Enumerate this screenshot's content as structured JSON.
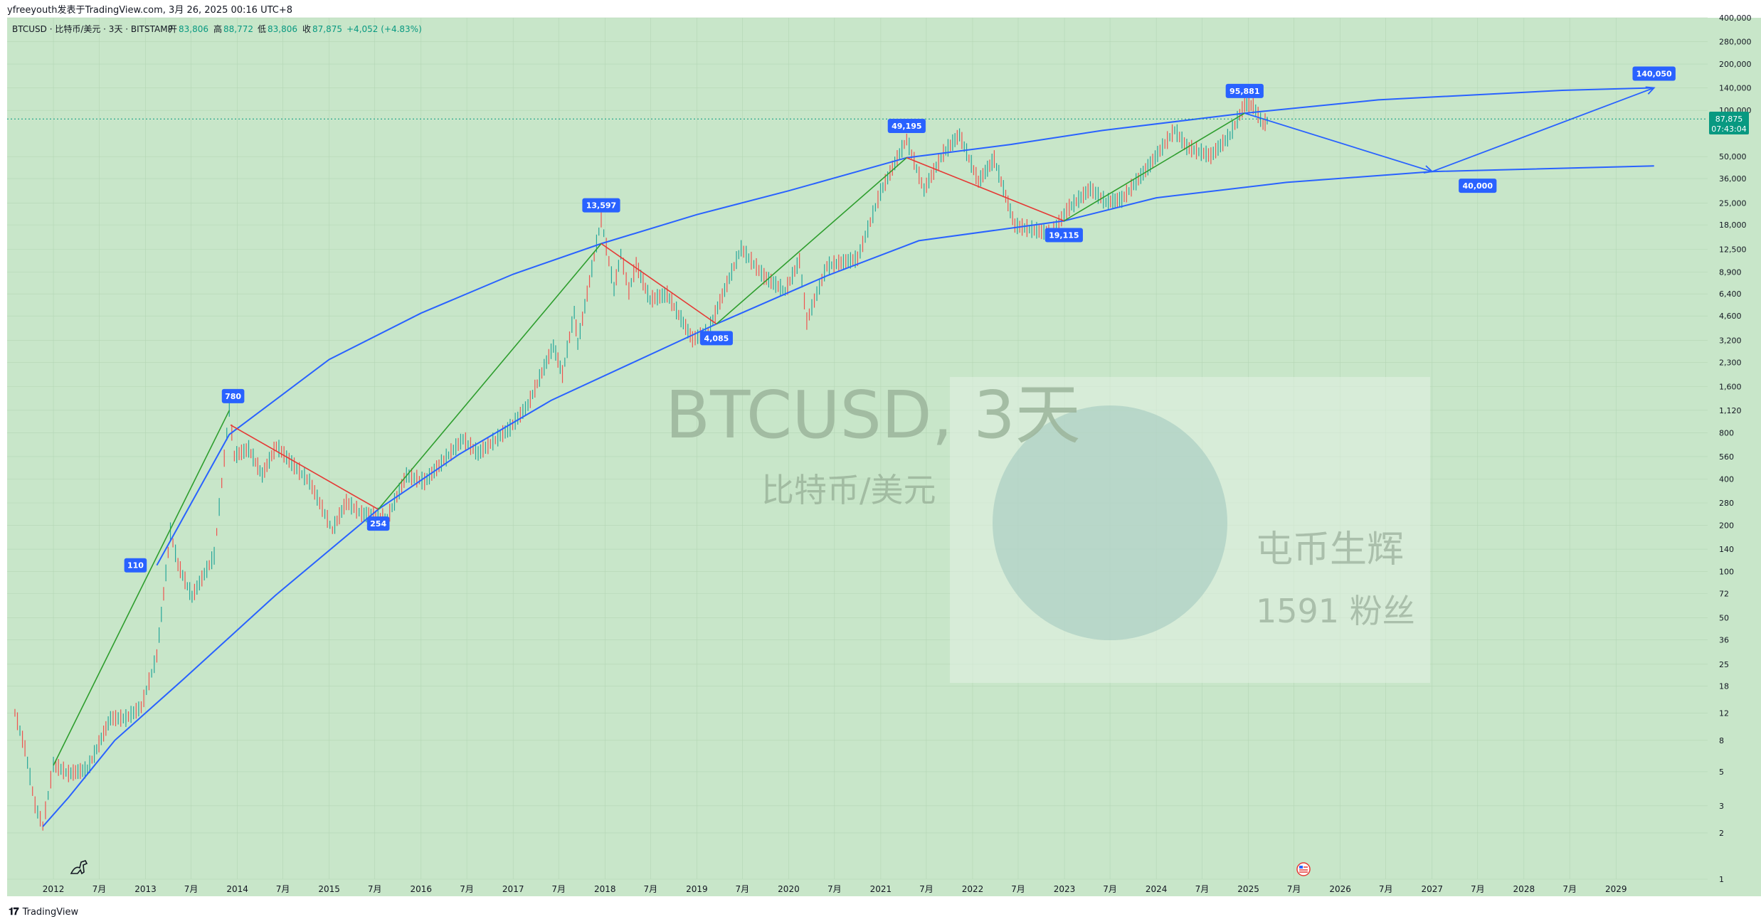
{
  "header": {
    "publish_line": "yfreeyouth发表于TradingView.com, 3月 26, 2025 00:16 UTC+8",
    "symbol_line": "BTCUSD · 比特币/美元 · 3天 · BITSTAMP",
    "ohlc": {
      "open_label": "开",
      "open": "83,806",
      "high_label": "高",
      "high": "88,772",
      "low_label": "低",
      "low": "83,806",
      "close_label": "收",
      "close": "87,875",
      "change": "+4,052 (+4.83%)"
    }
  },
  "watermark": {
    "symbol": "BTCUSD, 3天",
    "description": "比特币/美元",
    "channel_name": "屯币生辉",
    "followers": "1591 粉丝"
  },
  "price_badge": {
    "price": "87,875",
    "countdown": "07:43:04"
  },
  "footer": {
    "brand": "TradingView"
  },
  "colors": {
    "plot_bg": "#c8e6c9",
    "up_candle": "#26a69a",
    "down_candle": "#ef5350",
    "channel_line": "#2962ff",
    "uptrend_line": "#2e9e2e",
    "downtrend_line": "#e53935",
    "callout_bg": "#2962ff",
    "price_badge_bg": "#089981"
  },
  "icons": [
    "dinosaur-icon",
    "us-flag-icon",
    "tradingview-logo-icon"
  ],
  "chart_data": {
    "type": "line",
    "scale": "log",
    "ylim": [
      1,
      400000
    ],
    "xlim": [
      "2011-07-01",
      "2029-12-31"
    ],
    "y_ticks": [
      "400,000",
      "280,000",
      "200,000",
      "140,000",
      "100,000",
      "50,000",
      "36,000",
      "25,000",
      "18,000",
      "12,500",
      "8,900",
      "6,400",
      "4,600",
      "3,200",
      "2,300",
      "1,600",
      "1,120",
      "800",
      "560",
      "400",
      "280",
      "200",
      "140",
      "100",
      "72",
      "50",
      "36",
      "25",
      "18",
      "12",
      "8",
      "5",
      "3",
      "2",
      "1"
    ],
    "x_ticks": [
      {
        "date": "2012-01-01",
        "label": "2012"
      },
      {
        "date": "2012-07-01",
        "label": "7月"
      },
      {
        "date": "2013-01-01",
        "label": "2013"
      },
      {
        "date": "2013-07-01",
        "label": "7月"
      },
      {
        "date": "2014-01-01",
        "label": "2014"
      },
      {
        "date": "2014-07-01",
        "label": "7月"
      },
      {
        "date": "2015-01-01",
        "label": "2015"
      },
      {
        "date": "2015-07-01",
        "label": "7月"
      },
      {
        "date": "2016-01-01",
        "label": "2016"
      },
      {
        "date": "2016-07-01",
        "label": "7月"
      },
      {
        "date": "2017-01-01",
        "label": "2017"
      },
      {
        "date": "2017-07-01",
        "label": "7月"
      },
      {
        "date": "2018-01-01",
        "label": "2018"
      },
      {
        "date": "2018-07-01",
        "label": "7月"
      },
      {
        "date": "2019-01-01",
        "label": "2019"
      },
      {
        "date": "2019-07-01",
        "label": "7月"
      },
      {
        "date": "2020-01-01",
        "label": "2020"
      },
      {
        "date": "2020-07-01",
        "label": "7月"
      },
      {
        "date": "2021-01-01",
        "label": "2021"
      },
      {
        "date": "2021-07-01",
        "label": "7月"
      },
      {
        "date": "2022-01-01",
        "label": "2022"
      },
      {
        "date": "2022-07-01",
        "label": "7月"
      },
      {
        "date": "2023-01-01",
        "label": "2023"
      },
      {
        "date": "2023-07-01",
        "label": "7月"
      },
      {
        "date": "2024-01-01",
        "label": "2024"
      },
      {
        "date": "2024-07-01",
        "label": "7月"
      },
      {
        "date": "2025-01-01",
        "label": "2025"
      },
      {
        "date": "2025-07-01",
        "label": "7月"
      },
      {
        "date": "2026-01-01",
        "label": "2026"
      },
      {
        "date": "2026-07-01",
        "label": "7月"
      },
      {
        "date": "2027-01-01",
        "label": "2027"
      },
      {
        "date": "2027-07-01",
        "label": "7月"
      },
      {
        "date": "2028-01-01",
        "label": "2028"
      },
      {
        "date": "2028-07-01",
        "label": "7月"
      },
      {
        "date": "2029-01-01",
        "label": "2029"
      }
    ],
    "price_path": [
      [
        "2011-08-01",
        12
      ],
      [
        "2011-09-10",
        7
      ],
      [
        "2011-10-20",
        3
      ],
      [
        "2011-11-20",
        2.2
      ],
      [
        "2012-01-01",
        5.5
      ],
      [
        "2012-03-01",
        4.8
      ],
      [
        "2012-05-15",
        5.1
      ],
      [
        "2012-08-15",
        11
      ],
      [
        "2012-10-15",
        11
      ],
      [
        "2012-12-15",
        13
      ],
      [
        "2013-02-15",
        28
      ],
      [
        "2013-04-10",
        180
      ],
      [
        "2013-05-10",
        110
      ],
      [
        "2013-07-05",
        68
      ],
      [
        "2013-10-01",
        125
      ],
      [
        "2013-11-30",
        1120
      ],
      [
        "2013-12-20",
        560
      ],
      [
        "2014-02-15",
        620
      ],
      [
        "2014-04-10",
        420
      ],
      [
        "2014-06-05",
        650
      ],
      [
        "2014-08-15",
        480
      ],
      [
        "2014-10-15",
        380
      ],
      [
        "2015-01-14",
        185
      ],
      [
        "2015-03-10",
        280
      ],
      [
        "2015-05-10",
        235
      ],
      [
        "2015-08-20",
        220
      ],
      [
        "2015-11-04",
        420
      ],
      [
        "2016-01-15",
        380
      ],
      [
        "2016-06-16",
        720
      ],
      [
        "2016-08-15",
        580
      ],
      [
        "2016-12-20",
        850
      ],
      [
        "2017-03-01",
        1200
      ],
      [
        "2017-06-10",
        2900
      ],
      [
        "2017-07-16",
        1900
      ],
      [
        "2017-09-01",
        4800
      ],
      [
        "2017-09-15",
        3000
      ],
      [
        "2017-12-17",
        19500
      ],
      [
        "2018-02-06",
        6800
      ],
      [
        "2018-03-05",
        11500
      ],
      [
        "2018-04-06",
        6600
      ],
      [
        "2018-05-05",
        9800
      ],
      [
        "2018-06-29",
        5800
      ],
      [
        "2018-09-05",
        6300
      ],
      [
        "2018-12-15",
        3200
      ],
      [
        "2019-02-15",
        3600
      ],
      [
        "2019-06-26",
        12500
      ],
      [
        "2019-09-25",
        8200
      ],
      [
        "2019-12-18",
        6600
      ],
      [
        "2020-02-13",
        10400
      ],
      [
        "2020-03-13",
        4200
      ],
      [
        "2020-06-01",
        9600
      ],
      [
        "2020-10-01",
        10700
      ],
      [
        "2020-12-31",
        29000
      ],
      [
        "2021-04-14",
        64000
      ],
      [
        "2021-06-22",
        30000
      ],
      [
        "2021-09-07",
        52000
      ],
      [
        "2021-11-10",
        68500
      ],
      [
        "2022-01-24",
        34000
      ],
      [
        "2022-03-28",
        47500
      ],
      [
        "2022-06-18",
        17600
      ],
      [
        "2022-11-09",
        15600
      ],
      [
        "2023-01-20",
        23000
      ],
      [
        "2023-04-14",
        30500
      ],
      [
        "2023-06-15",
        25000
      ],
      [
        "2023-08-17",
        26000
      ],
      [
        "2023-12-08",
        44000
      ],
      [
        "2024-03-14",
        73700
      ],
      [
        "2024-05-01",
        57000
      ],
      [
        "2024-08-05",
        50000
      ],
      [
        "2024-10-20",
        68000
      ],
      [
        "2024-12-17",
        108000
      ],
      [
        "2025-01-20",
        106000
      ],
      [
        "2025-02-28",
        80000
      ],
      [
        "2025-03-25",
        87875
      ]
    ],
    "trend_lines": [
      {
        "color": "up",
        "points": [
          [
            "2012-01-01",
            5.5
          ],
          [
            "2013-11-30",
            1120
          ]
        ]
      },
      {
        "color": "down",
        "points": [
          [
            "2013-12-05",
            900
          ],
          [
            "2015-07-15",
            254
          ]
        ]
      },
      {
        "color": "up",
        "points": [
          [
            "2015-07-15",
            254
          ],
          [
            "2017-12-17",
            13597
          ]
        ]
      },
      {
        "color": "down",
        "points": [
          [
            "2017-12-17",
            13597
          ],
          [
            "2019-03-20",
            4085
          ]
        ]
      },
      {
        "color": "up",
        "points": [
          [
            "2019-03-20",
            4085
          ],
          [
            "2021-04-14",
            49195
          ]
        ]
      },
      {
        "color": "down",
        "points": [
          [
            "2021-04-14",
            49195
          ],
          [
            "2022-12-30",
            19115
          ]
        ]
      },
      {
        "color": "up",
        "points": [
          [
            "2022-12-30",
            19115
          ],
          [
            "2024-12-17",
            95881
          ]
        ]
      }
    ],
    "channel_upper": [
      [
        "2013-02-15",
        110
      ],
      [
        "2013-11-30",
        780
      ],
      [
        "2015-01-01",
        2400
      ],
      [
        "2016-01-01",
        4800
      ],
      [
        "2017-01-01",
        8600
      ],
      [
        "2017-12-17",
        13597
      ],
      [
        "2019-01-01",
        21000
      ],
      [
        "2020-01-01",
        30000
      ],
      [
        "2021-04-14",
        49195
      ],
      [
        "2022-06-01",
        60000
      ],
      [
        "2023-06-01",
        74000
      ],
      [
        "2024-12-17",
        95881
      ],
      [
        "2026-06-01",
        117000
      ],
      [
        "2028-06-01",
        135000
      ],
      [
        "2029-06-01",
        140050
      ]
    ],
    "channel_lower": [
      [
        "2011-11-20",
        2.2
      ],
      [
        "2012-03-01",
        3.4
      ],
      [
        "2012-09-01",
        8
      ],
      [
        "2013-06-01",
        20
      ],
      [
        "2014-06-01",
        70
      ],
      [
        "2015-07-15",
        254
      ],
      [
        "2016-06-01",
        580
      ],
      [
        "2017-06-01",
        1300
      ],
      [
        "2019-03-20",
        4085
      ],
      [
        "2020-06-01",
        8400
      ],
      [
        "2021-06-01",
        14200
      ],
      [
        "2022-12-30",
        19115
      ],
      [
        "2024-01-01",
        27000
      ],
      [
        "2025-06-01",
        34000
      ],
      [
        "2027-01-01",
        40000
      ],
      [
        "2029-06-01",
        43500
      ]
    ],
    "projection": [
      [
        "2024-12-17",
        95881
      ],
      [
        "2027-01-01",
        40000
      ],
      [
        "2029-06-01",
        140050
      ]
    ],
    "callouts": [
      {
        "label": "110",
        "date": "2013-02-15",
        "price": 110,
        "side": "left"
      },
      {
        "label": "780",
        "date": "2013-12-15",
        "price": 1120,
        "side": "above"
      },
      {
        "label": "254",
        "date": "2015-07-15",
        "price": 254,
        "side": "below"
      },
      {
        "label": "13,597",
        "date": "2017-12-17",
        "price": 19500,
        "side": "above"
      },
      {
        "label": "4,085",
        "date": "2019-03-20",
        "price": 4085,
        "side": "below"
      },
      {
        "label": "49,195",
        "date": "2021-04-14",
        "price": 64000,
        "side": "above"
      },
      {
        "label": "19,115",
        "date": "2022-12-30",
        "price": 19115,
        "side": "below"
      },
      {
        "label": "95,881",
        "date": "2024-12-17",
        "price": 108000,
        "side": "above"
      },
      {
        "label": "140,050",
        "date": "2029-06-01",
        "price": 140050,
        "side": "above"
      },
      {
        "label": "40,000",
        "date": "2027-07-01",
        "price": 40000,
        "side": "below"
      }
    ],
    "current_price": 87875
  }
}
